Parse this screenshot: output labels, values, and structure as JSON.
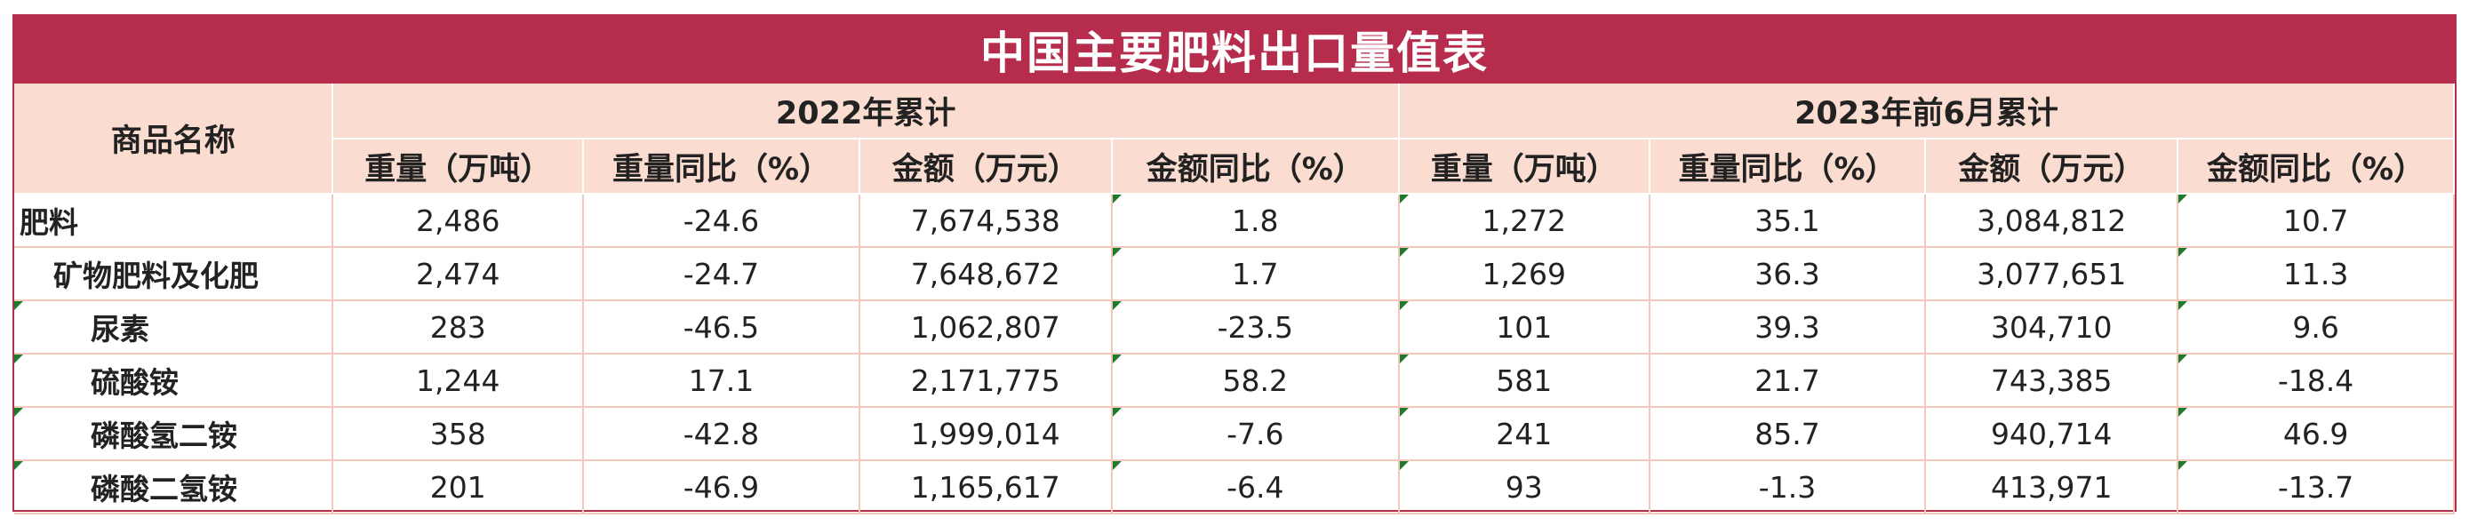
{
  "title": "中国主要肥料出口量值表",
  "header": {
    "name_col": "商品名称",
    "group_2022": "2022年累计",
    "group_2023": "2023年前6月累计",
    "columns": [
      "重量（万吨）",
      "重量同比（%）",
      "金额（万元）",
      "金额同比（%）",
      "重量（万吨）",
      "重量同比（%）",
      "金额（万元）",
      "金额同比（%）"
    ]
  },
  "rows": [
    {
      "name": "肥料",
      "level": 0,
      "values": [
        "2,486",
        "-24.6",
        "7,674,538",
        "1.8",
        "1,272",
        "35.1",
        "3,084,812",
        "10.7"
      ]
    },
    {
      "name": "矿物肥料及化肥",
      "level": 1,
      "values": [
        "2,474",
        "-24.7",
        "7,648,672",
        "1.7",
        "1,269",
        "36.3",
        "3,077,651",
        "11.3"
      ]
    },
    {
      "name": "尿素",
      "level": 2,
      "values": [
        "283",
        "-46.5",
        "1,062,807",
        "-23.5",
        "101",
        "39.3",
        "304,710",
        "9.6"
      ]
    },
    {
      "name": "硫酸铵",
      "level": 2,
      "values": [
        "1,244",
        "17.1",
        "2,171,775",
        "58.2",
        "581",
        "21.7",
        "743,385",
        "-18.4"
      ]
    },
    {
      "name": "磷酸氢二铵",
      "level": 2,
      "values": [
        "358",
        "-42.8",
        "1,999,014",
        "-7.6",
        "241",
        "85.7",
        "940,714",
        "46.9"
      ]
    },
    {
      "name": "磷酸二氢铵",
      "level": 2,
      "values": [
        "201",
        "-46.9",
        "1,165,617",
        "-6.4",
        "93",
        "-1.3",
        "413,971",
        "-13.7"
      ]
    }
  ],
  "colors": {
    "title_bg": "#b52c4d",
    "header_bg": "#fbdcd0",
    "positive": "#c01818",
    "negative": "#17a34a"
  }
}
